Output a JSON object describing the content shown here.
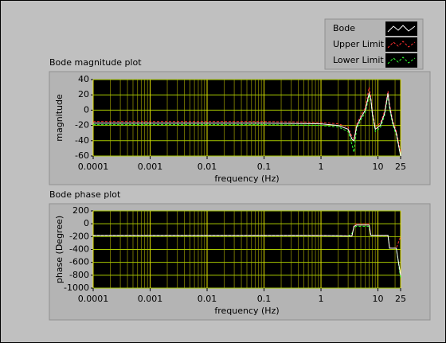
{
  "chart_data": [
    {
      "type": "line",
      "title": "Bode magnitude plot",
      "xlabel": "frequency (Hz)",
      "ylabel": "magnitude",
      "xscale": "log",
      "grid": true,
      "legend": "top-right",
      "xlim": [
        0.0001,
        25
      ],
      "xticks": [
        0.0001,
        0.001,
        0.01,
        0.1,
        1,
        10,
        25
      ],
      "ylim": [
        -60,
        40
      ],
      "yticks": [
        -60,
        -40,
        -20,
        0,
        20,
        40
      ],
      "x": [
        0.0001,
        0.001,
        0.01,
        0.1,
        0.5,
        1,
        2,
        3,
        3.5,
        3.8,
        4.2,
        5,
        6,
        7,
        7.5,
        8,
        9,
        11,
        13,
        15,
        16,
        18,
        21,
        25
      ],
      "series": [
        {
          "name": "Bode",
          "color": "#ffffff",
          "style": "solid",
          "values": [
            -17,
            -17,
            -17,
            -17,
            -17.5,
            -18,
            -20,
            -25,
            -38,
            -40,
            -22,
            -10,
            0,
            22,
            15,
            -5,
            -25,
            -20,
            -5,
            22,
            5,
            -15,
            -30,
            -60
          ]
        },
        {
          "name": "Upper Limit",
          "color": "#ff3030",
          "style": "dashed",
          "values": [
            -15,
            -15,
            -15,
            -15,
            -15.5,
            -16,
            -18,
            -22,
            -35,
            -37,
            -19,
            -7,
            3,
            30,
            18,
            -2,
            -22,
            -17,
            -2,
            25,
            8,
            -12,
            -27,
            -55
          ]
        },
        {
          "name": "Lower Limit",
          "color": "#30ff30",
          "style": "dashed",
          "values": [
            -19,
            -19,
            -19,
            -19,
            -19.5,
            -20,
            -22,
            -28,
            -45,
            -55,
            -25,
            -13,
            -3,
            18,
            12,
            -8,
            -28,
            -23,
            -8,
            19,
            2,
            -18,
            -33,
            -60
          ]
        }
      ]
    },
    {
      "type": "line",
      "title": "Bode phase plot",
      "xlabel": "frequency (Hz)",
      "ylabel": "phase (Degree)",
      "xscale": "log",
      "grid": true,
      "xlim": [
        0.0001,
        25
      ],
      "xticks": [
        0.0001,
        0.001,
        0.01,
        0.1,
        1,
        10,
        25
      ],
      "ylim": [
        -1000,
        200
      ],
      "yticks": [
        -1000,
        -800,
        -600,
        -400,
        -200,
        0,
        200
      ],
      "x": [
        0.0001,
        0.001,
        0.01,
        0.1,
        0.5,
        1,
        2,
        3,
        3.5,
        3.8,
        4.2,
        5,
        6,
        7,
        7.5,
        8,
        9,
        11,
        13,
        15,
        16,
        18,
        21,
        25
      ],
      "series": [
        {
          "color": "#ffffff",
          "style": "solid",
          "values": [
            -180,
            -180,
            -180,
            -180,
            -180,
            -182,
            -185,
            -190,
            -190,
            -40,
            -20,
            -20,
            -20,
            -20,
            -180,
            -180,
            -180,
            -180,
            -180,
            -180,
            -380,
            -380,
            -380,
            -800
          ]
        },
        {
          "color": "#ff3030",
          "style": "dashed",
          "values": [
            -178,
            -178,
            -178,
            -178,
            -178,
            -180,
            -183,
            -188,
            -188,
            -20,
            0,
            0,
            0,
            0,
            -178,
            -178,
            -178,
            -178,
            -178,
            -178,
            -378,
            -378,
            -378,
            -200
          ]
        },
        {
          "color": "#30ff30",
          "style": "dashed",
          "values": [
            -182,
            -182,
            -182,
            -182,
            -182,
            -184,
            -187,
            -192,
            -150,
            -60,
            -40,
            -40,
            -40,
            -40,
            -182,
            -182,
            -182,
            -182,
            -182,
            -182,
            -382,
            -382,
            -382,
            -850
          ]
        }
      ]
    }
  ]
}
